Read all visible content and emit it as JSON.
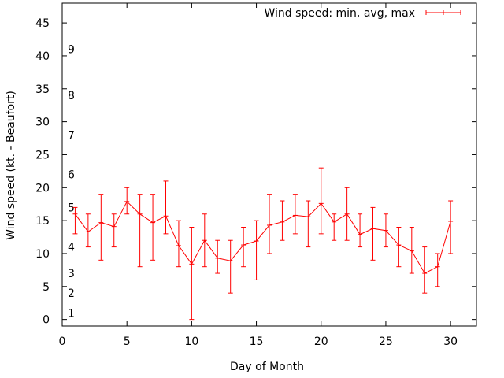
{
  "chart_data": {
    "type": "line",
    "title": "",
    "xlabel": "Day of Month",
    "ylabel": "Wind speed (kt. - Beaufort)",
    "xlim": [
      0,
      32
    ],
    "ylim": [
      -1,
      48
    ],
    "xticks": [
      0,
      5,
      10,
      15,
      20,
      25,
      30
    ],
    "yticks": [
      0,
      5,
      10,
      15,
      20,
      25,
      30,
      35,
      40,
      45
    ],
    "grid": false,
    "legend_position": "top-right",
    "series": [
      {
        "name": "Wind speed: min, avg, max",
        "color": "#ff0000",
        "x": [
          1,
          2,
          3,
          4,
          5,
          6,
          7,
          8,
          9,
          10,
          11,
          12,
          13,
          14,
          15,
          16,
          17,
          18,
          19,
          20,
          21,
          22,
          23,
          24,
          25,
          26,
          27,
          28,
          29,
          30
        ],
        "avg": [
          16,
          13.3,
          14.7,
          14.1,
          17.9,
          16,
          14.7,
          15.7,
          11.2,
          8.4,
          12,
          9.3,
          8.9,
          11.3,
          11.9,
          14.3,
          14.8,
          15.8,
          15.6,
          17.6,
          14.8,
          16,
          12.9,
          13.8,
          13.5,
          11.3,
          10.4,
          7,
          8,
          14.9
        ],
        "min": [
          13,
          11,
          9,
          11,
          16,
          8,
          9,
          13,
          8,
          0,
          8,
          7,
          4,
          8,
          6,
          10,
          12,
          13,
          11,
          13,
          12,
          12,
          11,
          9,
          11,
          8,
          7,
          4,
          5,
          10
        ],
        "max": [
          17,
          16,
          19,
          16,
          20,
          19,
          19,
          21,
          15,
          14,
          16,
          12,
          12,
          14,
          15,
          19,
          18,
          19,
          18,
          23,
          16,
          20,
          16,
          17,
          16,
          14,
          14,
          11,
          10,
          18
        ]
      }
    ],
    "annotations": [
      {
        "label": "1",
        "y": 1
      },
      {
        "label": "2",
        "y": 4
      },
      {
        "label": "3",
        "y": 7
      },
      {
        "label": "4",
        "y": 11
      },
      {
        "label": "5",
        "y": 17
      },
      {
        "label": "6",
        "y": 22
      },
      {
        "label": "7",
        "y": 28
      },
      {
        "label": "8",
        "y": 34
      },
      {
        "label": "9",
        "y": 41
      }
    ]
  }
}
